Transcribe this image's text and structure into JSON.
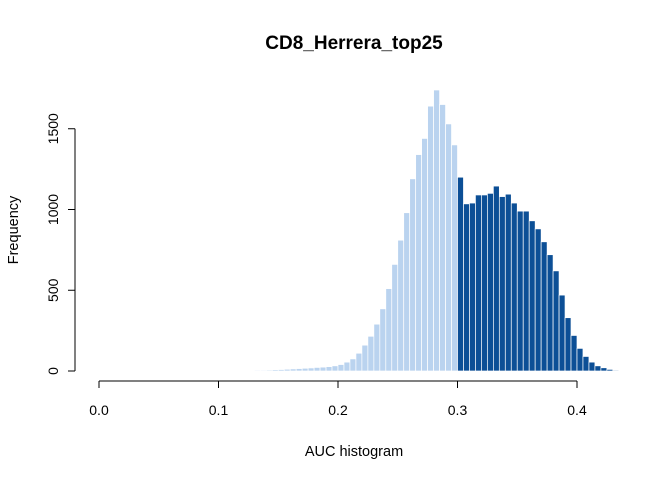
{
  "chart_data": {
    "type": "bar",
    "title": "CD8_Herrera_top25",
    "xlabel": "AUC histogram",
    "ylabel": "Frequency",
    "xlim": [
      0,
      0.43
    ],
    "ylim": [
      0,
      1750
    ],
    "x_ticks": [
      "0.0",
      "0.1",
      "0.2",
      "0.3",
      "0.4"
    ],
    "y_ticks": [
      "0",
      "500",
      "1000",
      "1500"
    ],
    "bin_width": 0.005,
    "bin_start": 0.105,
    "threshold": 0.3,
    "colors": {
      "below_threshold": "#bad3ef",
      "above_threshold": "#0c4f96",
      "bar_border": "#ffffff",
      "axis": "#000000"
    },
    "values": [
      2,
      2,
      3,
      3,
      4,
      5,
      5,
      6,
      8,
      9,
      11,
      13,
      15,
      17,
      19,
      22,
      24,
      27,
      32,
      40,
      55,
      75,
      110,
      160,
      215,
      290,
      385,
      510,
      660,
      810,
      980,
      1190,
      1340,
      1440,
      1640,
      1740,
      1650,
      1530,
      1400,
      1200,
      1035,
      1040,
      1090,
      1090,
      1100,
      1145,
      1080,
      1095,
      1040,
      990,
      990,
      930,
      880,
      800,
      720,
      620,
      470,
      330,
      220,
      140,
      90,
      55,
      32,
      20,
      10,
      5,
      3
    ]
  }
}
